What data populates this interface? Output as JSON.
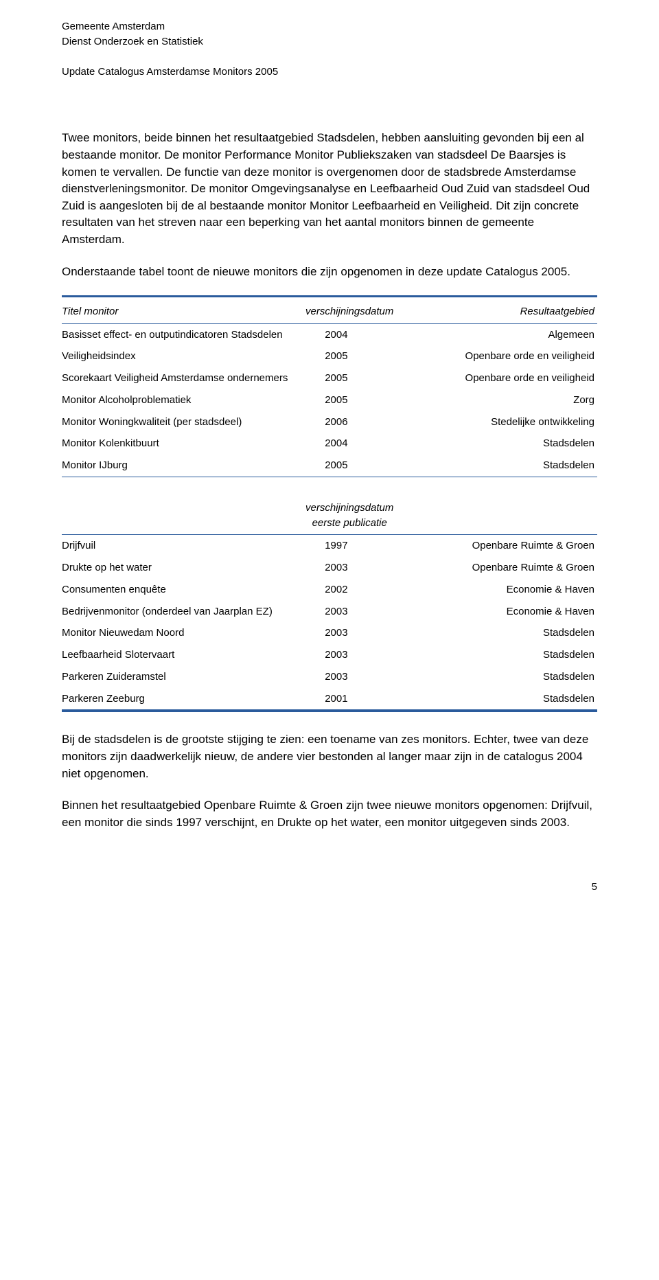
{
  "colors": {
    "rule": "#2a5b9c",
    "text": "#000000",
    "bg": "#ffffff"
  },
  "fonts": {
    "body_size": 17,
    "small_size": 15,
    "header_italic": true
  },
  "header": {
    "line1": "Gemeente Amsterdam",
    "line2": "Dienst Onderzoek en Statistiek",
    "title": "Update Catalogus Amsterdamse Monitors 2005"
  },
  "paragraphs": {
    "p1": "Twee monitors, beide binnen het resultaatgebied Stadsdelen, hebben aansluiting gevonden bij een al bestaande monitor. De monitor Performance Monitor Publiekszaken van stadsdeel De Baarsjes is komen te vervallen. De functie van deze monitor is overgenomen door de stadsbrede Amsterdamse dienstverleningsmonitor. De monitor Omgevingsanalyse en Leefbaarheid Oud Zuid van stadsdeel Oud Zuid is aangesloten bij de al bestaande monitor Monitor Leefbaarheid en Veiligheid. Dit zijn concrete resultaten van het streven naar een beperking van het aantal monitors binnen de gemeente Amsterdam.",
    "p2": "Onderstaande tabel toont de nieuwe monitors die zijn opgenomen in deze update Catalogus 2005.",
    "p3": "Bij de stadsdelen is de grootste stijging te zien: een toename van zes monitors. Echter, twee van deze monitors zijn daadwerkelijk nieuw, de andere vier bestonden al langer maar zijn in de catalogus 2004 niet opgenomen.",
    "p4": "Binnen het resultaatgebied Openbare Ruimte & Groen zijn twee nieuwe monitors opgenomen: Drijfvuil, een monitor die sinds 1997 verschijnt, en Drukte op het water, een monitor uitgegeven sinds 2003."
  },
  "table1": {
    "columns": [
      "Titel monitor",
      "verschijningsdatum",
      "Resultaatgebied"
    ],
    "col_align": [
      "left",
      "center",
      "right"
    ],
    "rows": [
      [
        "Basisset effect- en outputindicatoren Stadsdelen",
        "2004",
        "Algemeen"
      ],
      [
        "Veiligheidsindex",
        "2005",
        "Openbare orde en veiligheid"
      ],
      [
        "Scorekaart Veiligheid Amsterdamse ondernemers",
        "2005",
        "Openbare orde en veiligheid"
      ],
      [
        "Monitor Alcoholproblematiek",
        "2005",
        "Zorg"
      ],
      [
        "Monitor Woningkwaliteit (per stadsdeel)",
        "2006",
        "Stedelijke ontwikkeling"
      ],
      [
        "Monitor Kolenkitbuurt",
        "2004",
        "Stadsdelen"
      ],
      [
        "Monitor IJburg",
        "2005",
        "Stadsdelen"
      ]
    ]
  },
  "table2": {
    "columns": [
      "",
      "verschijningsdatum eerste publicatie",
      ""
    ],
    "rows": [
      [
        "Drijfvuil",
        "1997",
        "Openbare Ruimte & Groen"
      ],
      [
        "Drukte op het water",
        "2003",
        "Openbare Ruimte & Groen"
      ],
      [
        "Consumenten enquête",
        "2002",
        "Economie & Haven"
      ],
      [
        "Bedrijvenmonitor (onderdeel van Jaarplan EZ)",
        "2003",
        "Economie & Haven"
      ],
      [
        "Monitor Nieuwedam Noord",
        "2003",
        "Stadsdelen"
      ],
      [
        "Leefbaarheid Slotervaart",
        "2003",
        "Stadsdelen"
      ],
      [
        "Parkeren Zuideramstel",
        "2003",
        "Stadsdelen"
      ],
      [
        "Parkeren Zeeburg",
        "2001",
        "Stadsdelen"
      ]
    ]
  },
  "page_number": "5"
}
